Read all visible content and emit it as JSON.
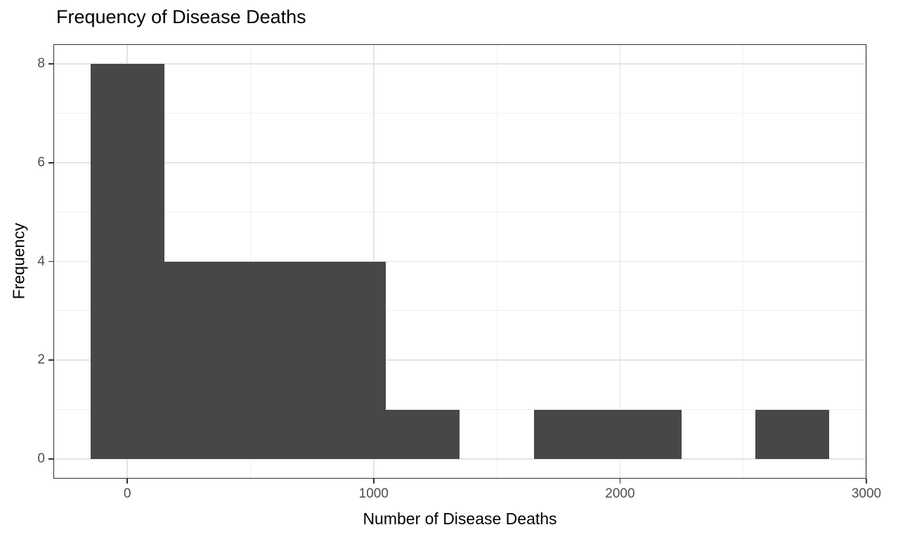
{
  "page": {
    "background": "#ffffff"
  },
  "chart_data": {
    "type": "bar",
    "subtype": "histogram",
    "title": "Frequency of Disease Deaths",
    "xlabel": "Number of Disease Deaths",
    "ylabel": "Frequency",
    "binwidth": 300,
    "bins": [
      {
        "x0": -150,
        "x1": 150,
        "count": 8
      },
      {
        "x0": 150,
        "x1": 450,
        "count": 4
      },
      {
        "x0": 450,
        "x1": 750,
        "count": 4
      },
      {
        "x0": 750,
        "x1": 1050,
        "count": 4
      },
      {
        "x0": 1050,
        "x1": 1350,
        "count": 1
      },
      {
        "x0": 1350,
        "x1": 1650,
        "count": 0
      },
      {
        "x0": 1650,
        "x1": 1950,
        "count": 1
      },
      {
        "x0": 1950,
        "x1": 2250,
        "count": 1
      },
      {
        "x0": 2250,
        "x1": 2550,
        "count": 0
      },
      {
        "x0": 2550,
        "x1": 2850,
        "count": 1
      }
    ],
    "xlim": [
      -300,
      3000
    ],
    "ylim": [
      -0.4,
      8.4
    ],
    "x_ticks": [
      {
        "value": 0,
        "label": "0"
      },
      {
        "value": 1000,
        "label": "1000"
      },
      {
        "value": 2000,
        "label": "2000"
      },
      {
        "value": 3000,
        "label": "3000"
      }
    ],
    "y_ticks": [
      {
        "value": 0,
        "label": "0"
      },
      {
        "value": 2,
        "label": "2"
      },
      {
        "value": 4,
        "label": "4"
      },
      {
        "value": 6,
        "label": "6"
      },
      {
        "value": 8,
        "label": "8"
      }
    ],
    "x_minor": [
      500,
      1500,
      2500
    ],
    "y_minor": [
      1,
      3,
      5,
      7
    ],
    "grid": true,
    "legend_position": "none",
    "colors": {
      "bar_fill": "#474747",
      "panel_border": "#333333",
      "grid_major": "#e4e4e4",
      "grid_minor": "#f0f0f0",
      "tick_mark": "#333333",
      "tick_label": "#4d4d4d",
      "text": "#000000",
      "panel_background": "#ffffff"
    }
  }
}
